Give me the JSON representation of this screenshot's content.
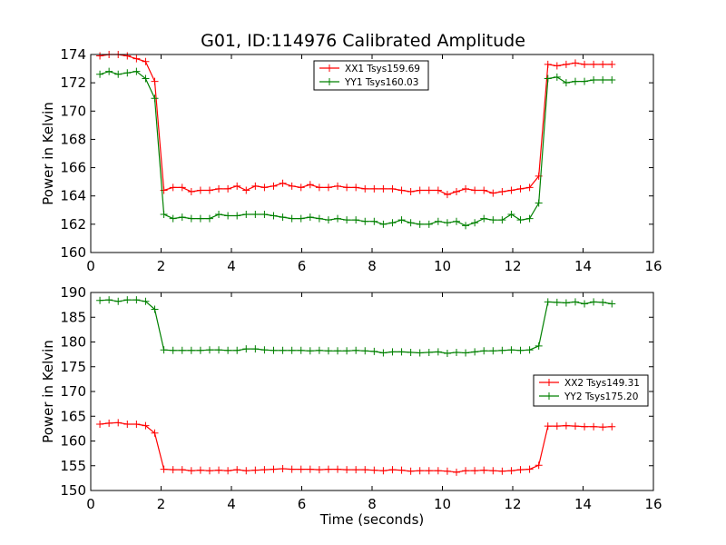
{
  "title": "G01, ID:114976 Calibrated Amplitude",
  "chart_data": [
    {
      "type": "line",
      "title": "G01, ID:114976 Calibrated Amplitude",
      "xlabel": "",
      "ylabel": "Power in Kelvin",
      "xlim": [
        0,
        16
      ],
      "ylim": [
        160,
        174
      ],
      "xticks": [
        0,
        2,
        4,
        6,
        8,
        10,
        12,
        14,
        16
      ],
      "yticks": [
        160,
        162,
        164,
        166,
        168,
        170,
        172,
        174
      ],
      "grid": false,
      "legend_position": "upper-center",
      "x": [
        0.26,
        0.52,
        0.78,
        1.04,
        1.3,
        1.56,
        1.82,
        2.08,
        2.34,
        2.6,
        2.86,
        3.12,
        3.38,
        3.64,
        3.9,
        4.16,
        4.42,
        4.68,
        4.94,
        5.2,
        5.46,
        5.72,
        5.98,
        6.24,
        6.5,
        6.76,
        7.02,
        7.28,
        7.54,
        7.8,
        8.06,
        8.32,
        8.58,
        8.84,
        9.1,
        9.36,
        9.62,
        9.88,
        10.14,
        10.4,
        10.66,
        10.92,
        11.18,
        11.44,
        11.7,
        11.96,
        12.22,
        12.48,
        12.74,
        13.0,
        13.26,
        13.52,
        13.78,
        14.04,
        14.3,
        14.56,
        14.82
      ],
      "series": [
        {
          "name": "XX1 Tsys159.69",
          "color": "#ff0000",
          "values": [
            173.9,
            174.0,
            174.0,
            173.9,
            173.7,
            173.5,
            172.1,
            164.4,
            164.6,
            164.6,
            164.3,
            164.4,
            164.4,
            164.5,
            164.5,
            164.7,
            164.4,
            164.7,
            164.6,
            164.7,
            164.9,
            164.7,
            164.6,
            164.8,
            164.6,
            164.6,
            164.7,
            164.6,
            164.6,
            164.5,
            164.5,
            164.5,
            164.5,
            164.4,
            164.3,
            164.4,
            164.4,
            164.4,
            164.1,
            164.3,
            164.5,
            164.4,
            164.4,
            164.2,
            164.3,
            164.4,
            164.5,
            164.6,
            165.4,
            173.3,
            173.2,
            173.3,
            173.4,
            173.3,
            173.3,
            173.3,
            173.3
          ]
        },
        {
          "name": "YY1 Tsys160.03",
          "color": "#008000",
          "values": [
            172.6,
            172.8,
            172.6,
            172.7,
            172.8,
            172.3,
            170.9,
            162.7,
            162.4,
            162.5,
            162.4,
            162.4,
            162.4,
            162.7,
            162.6,
            162.6,
            162.7,
            162.7,
            162.7,
            162.6,
            162.5,
            162.4,
            162.4,
            162.5,
            162.4,
            162.3,
            162.4,
            162.3,
            162.3,
            162.2,
            162.2,
            162.0,
            162.1,
            162.3,
            162.1,
            162.0,
            162.0,
            162.2,
            162.1,
            162.2,
            161.9,
            162.1,
            162.4,
            162.3,
            162.3,
            162.7,
            162.3,
            162.4,
            163.5,
            172.3,
            172.4,
            172.0,
            172.1,
            172.1,
            172.2,
            172.2,
            172.2
          ]
        }
      ]
    },
    {
      "type": "line",
      "title": "",
      "xlabel": "Time (seconds)",
      "ylabel": "Power in Kelvin",
      "xlim": [
        0,
        16
      ],
      "ylim": [
        150,
        190
      ],
      "xticks": [
        0,
        2,
        4,
        6,
        8,
        10,
        12,
        14,
        16
      ],
      "yticks": [
        150,
        155,
        160,
        165,
        170,
        175,
        180,
        185,
        190
      ],
      "grid": false,
      "legend_position": "center-right",
      "x": [
        0.26,
        0.52,
        0.78,
        1.04,
        1.3,
        1.56,
        1.82,
        2.08,
        2.34,
        2.6,
        2.86,
        3.12,
        3.38,
        3.64,
        3.9,
        4.16,
        4.42,
        4.68,
        4.94,
        5.2,
        5.46,
        5.72,
        5.98,
        6.24,
        6.5,
        6.76,
        7.02,
        7.28,
        7.54,
        7.8,
        8.06,
        8.32,
        8.58,
        8.84,
        9.1,
        9.36,
        9.62,
        9.88,
        10.14,
        10.4,
        10.66,
        10.92,
        11.18,
        11.44,
        11.7,
        11.96,
        12.22,
        12.48,
        12.74,
        13.0,
        13.26,
        13.52,
        13.78,
        14.04,
        14.3,
        14.56,
        14.82
      ],
      "series": [
        {
          "name": "XX2 Tsys149.31",
          "color": "#ff0000",
          "values": [
            163.4,
            163.6,
            163.7,
            163.4,
            163.4,
            163.1,
            161.6,
            154.3,
            154.2,
            154.2,
            154.0,
            154.1,
            154.0,
            154.1,
            154.0,
            154.2,
            154.0,
            154.1,
            154.2,
            154.3,
            154.4,
            154.3,
            154.3,
            154.3,
            154.2,
            154.3,
            154.3,
            154.2,
            154.2,
            154.2,
            154.1,
            154.0,
            154.2,
            154.1,
            153.9,
            154.0,
            154.0,
            154.0,
            153.9,
            153.7,
            154.0,
            154.0,
            154.1,
            154.0,
            153.9,
            154.0,
            154.2,
            154.3,
            155.1,
            163.0,
            163.0,
            163.1,
            163.0,
            162.9,
            162.9,
            162.8,
            162.9
          ]
        },
        {
          "name": "YY2 Tsys175.20",
          "color": "#008000",
          "values": [
            188.4,
            188.5,
            188.2,
            188.5,
            188.5,
            188.2,
            186.6,
            178.4,
            178.3,
            178.3,
            178.3,
            178.3,
            178.4,
            178.4,
            178.3,
            178.3,
            178.6,
            178.6,
            178.4,
            178.3,
            178.3,
            178.3,
            178.3,
            178.2,
            178.3,
            178.2,
            178.2,
            178.2,
            178.3,
            178.2,
            178.1,
            177.8,
            178.0,
            178.0,
            177.9,
            177.8,
            177.9,
            178.0,
            177.7,
            177.9,
            177.8,
            178.0,
            178.2,
            178.2,
            178.3,
            178.4,
            178.3,
            178.4,
            179.2,
            188.1,
            188.0,
            187.9,
            188.1,
            187.7,
            188.1,
            188.0,
            187.7
          ]
        }
      ]
    }
  ]
}
